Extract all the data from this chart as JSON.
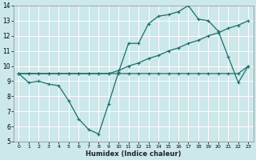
{
  "xlabel": "Humidex (Indice chaleur)",
  "bg_color": "#cce8ea",
  "grid_color": "#ffffff",
  "line_color": "#1a6e6a",
  "xlim": [
    -0.5,
    23.5
  ],
  "ylim": [
    5,
    14
  ],
  "xticks": [
    0,
    1,
    2,
    3,
    4,
    5,
    6,
    7,
    8,
    9,
    10,
    11,
    12,
    13,
    14,
    15,
    16,
    17,
    18,
    19,
    20,
    21,
    22,
    23
  ],
  "yticks": [
    5,
    6,
    7,
    8,
    9,
    10,
    11,
    12,
    13,
    14
  ],
  "line1_y": [
    9.5,
    8.9,
    9.0,
    8.8,
    8.7,
    7.7,
    6.5,
    5.8,
    5.5,
    7.5,
    9.6,
    11.5,
    11.5,
    12.8,
    13.3,
    13.4,
    13.6,
    14.0,
    13.1,
    13.0,
    12.3,
    10.6,
    8.9,
    10.0
  ],
  "line2_y": [
    9.5,
    9.5,
    9.5,
    9.5,
    9.5,
    9.5,
    9.5,
    9.5,
    9.5,
    9.5,
    9.7,
    10.0,
    10.2,
    10.5,
    10.7,
    11.0,
    11.2,
    11.5,
    11.7,
    12.0,
    12.2,
    12.5,
    12.7,
    13.0
  ],
  "line3_y": [
    9.5,
    9.5,
    9.5,
    9.5,
    9.5,
    9.5,
    9.5,
    9.5,
    9.5,
    9.5,
    9.5,
    9.5,
    9.5,
    9.5,
    9.5,
    9.5,
    9.5,
    9.5,
    9.5,
    9.5,
    9.5,
    9.5,
    9.5,
    10.0
  ]
}
